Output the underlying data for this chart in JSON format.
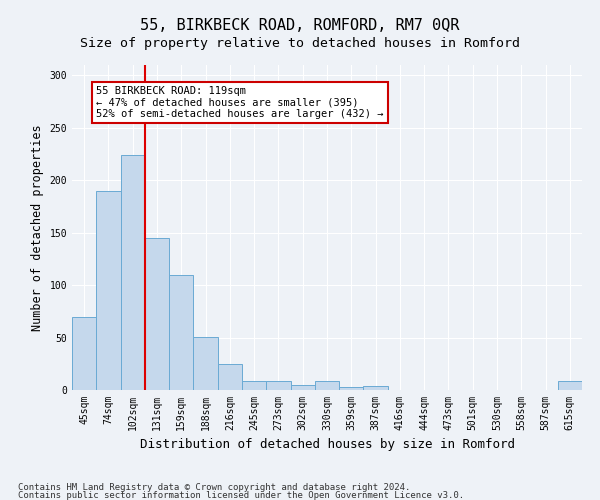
{
  "title": "55, BIRKBECK ROAD, ROMFORD, RM7 0QR",
  "subtitle": "Size of property relative to detached houses in Romford",
  "xlabel": "Distribution of detached houses by size in Romford",
  "ylabel": "Number of detached properties",
  "bin_labels": [
    "45sqm",
    "74sqm",
    "102sqm",
    "131sqm",
    "159sqm",
    "188sqm",
    "216sqm",
    "245sqm",
    "273sqm",
    "302sqm",
    "330sqm",
    "359sqm",
    "387sqm",
    "416sqm",
    "444sqm",
    "473sqm",
    "501sqm",
    "530sqm",
    "558sqm",
    "587sqm",
    "615sqm"
  ],
  "bar_heights": [
    70,
    190,
    224,
    145,
    110,
    51,
    25,
    9,
    9,
    5,
    9,
    3,
    4,
    0,
    0,
    0,
    0,
    0,
    0,
    0,
    9
  ],
  "bar_color": "#c5d8ec",
  "bar_edge_color": "#6aaad4",
  "vline_x_index": 2.5,
  "vline_color": "#dd0000",
  "annotation_text": "55 BIRKBECK ROAD: 119sqm\n← 47% of detached houses are smaller (395)\n52% of semi-detached houses are larger (432) →",
  "annotation_box_color": "#ffffff",
  "annotation_box_edge_color": "#cc0000",
  "ylim": [
    0,
    310
  ],
  "yticks": [
    0,
    50,
    100,
    150,
    200,
    250,
    300
  ],
  "footer_line1": "Contains HM Land Registry data © Crown copyright and database right 2024.",
  "footer_line2": "Contains public sector information licensed under the Open Government Licence v3.0.",
  "background_color": "#eef2f7",
  "grid_color": "#ffffff",
  "title_fontsize": 11,
  "subtitle_fontsize": 9.5,
  "axis_label_fontsize": 8.5,
  "tick_fontsize": 7,
  "annotation_fontsize": 7.5,
  "footer_fontsize": 6.5
}
